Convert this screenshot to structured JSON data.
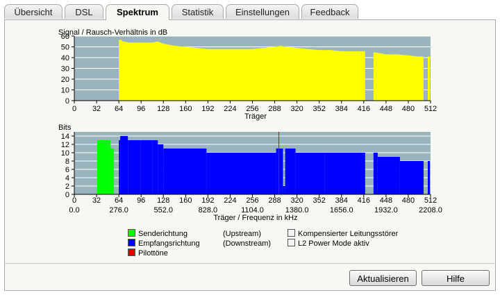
{
  "tabs": [
    {
      "label": "Übersicht",
      "active": false
    },
    {
      "label": "DSL",
      "active": false
    },
    {
      "label": "Spektrum",
      "active": true
    },
    {
      "label": "Statistik",
      "active": false
    },
    {
      "label": "Einstellungen",
      "active": false
    },
    {
      "label": "Feedback",
      "active": false
    }
  ],
  "chart_data": [
    {
      "type": "area",
      "title": "Signal / Rausch-Verhältnis in dB",
      "xlabel": "Träger",
      "xlim": [
        0,
        512
      ],
      "ylim": [
        0,
        60
      ],
      "x_ticks": [
        0,
        32,
        64,
        96,
        128,
        160,
        192,
        224,
        256,
        288,
        320,
        352,
        384,
        416,
        448,
        480,
        512
      ],
      "y_ticks": [
        0,
        10,
        20,
        30,
        40,
        50,
        60
      ],
      "colors": {
        "plot_bg": "#99b4bc",
        "grid": "#ffffff",
        "fill": "#ffff00"
      },
      "series": [
        {
          "x": [
            64,
            66,
            70,
            80,
            96,
            112,
            120,
            128,
            144,
            160,
            176,
            192,
            208,
            224,
            240,
            256,
            272,
            288,
            296,
            304,
            320,
            336,
            352,
            368,
            384,
            400,
            416,
            418
          ],
          "y": [
            56,
            57,
            55,
            54,
            54,
            54,
            55,
            53,
            51,
            50,
            49,
            48,
            48,
            48,
            48,
            48,
            49,
            50,
            51,
            50,
            49,
            48,
            47,
            47,
            46,
            46,
            46,
            46
          ]
        },
        {
          "x": [
            430,
            440,
            448,
            464,
            480,
            496,
            502
          ],
          "y": [
            45,
            44,
            43,
            43,
            42,
            41,
            41
          ]
        },
        {
          "x": [
            508,
            511
          ],
          "y": [
            41,
            41
          ]
        }
      ]
    },
    {
      "type": "bar",
      "title": "Bits",
      "xlabel": "Träger / Frequenz in kHz",
      "xlim": [
        0,
        512
      ],
      "ylim": [
        0,
        15
      ],
      "x_ticks": [
        0,
        32,
        64,
        96,
        128,
        160,
        192,
        224,
        256,
        288,
        320,
        352,
        384,
        416,
        448,
        480,
        512
      ],
      "freq_ticks": [
        "0.0",
        "276.0",
        "552.0",
        "828.0",
        "1104.0",
        "1380.0",
        "1656.0",
        "1932.0",
        "2208.0"
      ],
      "y_ticks": [
        0,
        2,
        4,
        6,
        8,
        10,
        12,
        14
      ],
      "colors": {
        "plot_bg": "#99b4bc",
        "grid": "#ffffff",
        "upstream": "#00ff00",
        "downstream": "#0000ff",
        "pilot": "#e00000"
      },
      "upstream": [
        {
          "x0": 33,
          "x1": 52,
          "bits": 13
        },
        {
          "x0": 52,
          "x1": 57,
          "bits": 11
        }
      ],
      "downstream": [
        {
          "x0": 64,
          "x1": 66,
          "bits": 13
        },
        {
          "x0": 66,
          "x1": 77,
          "bits": 14
        },
        {
          "x0": 77,
          "x1": 95,
          "bits": 13
        },
        {
          "x0": 95,
          "x1": 112,
          "bits": 13
        },
        {
          "x0": 112,
          "x1": 120,
          "bits": 13
        },
        {
          "x0": 120,
          "x1": 128,
          "bits": 12
        },
        {
          "x0": 128,
          "x1": 190,
          "bits": 11
        },
        {
          "x0": 190,
          "x1": 256,
          "bits": 10
        },
        {
          "x0": 256,
          "x1": 290,
          "bits": 10
        },
        {
          "x0": 290,
          "x1": 294,
          "bits": 11
        },
        {
          "x0": 294,
          "x1": 300,
          "bits": 11
        },
        {
          "x0": 300,
          "x1": 303,
          "bits": 2
        },
        {
          "x0": 303,
          "x1": 318,
          "bits": 11
        },
        {
          "x0": 318,
          "x1": 360,
          "bits": 10
        },
        {
          "x0": 360,
          "x1": 418,
          "bits": 10
        },
        {
          "x0": 430,
          "x1": 436,
          "bits": 10
        },
        {
          "x0": 436,
          "x1": 468,
          "bits": 9
        },
        {
          "x0": 468,
          "x1": 502,
          "bits": 8
        },
        {
          "x0": 508,
          "x1": 511,
          "bits": 8
        }
      ],
      "pilot_tone_carrier": 294
    }
  ],
  "legend": {
    "items": [
      {
        "label": "Senderichtung",
        "color": "#00ff00",
        "note": "(Upstream)"
      },
      {
        "label": "Empfangsrichtung",
        "color": "#0000ff",
        "note": "(Downstream)"
      },
      {
        "label": "Pilottöne",
        "color": "#e00000",
        "note": ""
      }
    ],
    "extra": [
      {
        "label": "Kompensierter Leitungsstörer",
        "color": "#f2f2f2"
      },
      {
        "label": "L2 Power Mode aktiv",
        "color": "#f2f2f2"
      }
    ]
  },
  "buttons": {
    "refresh": "Aktualisieren",
    "help": "Hilfe"
  }
}
